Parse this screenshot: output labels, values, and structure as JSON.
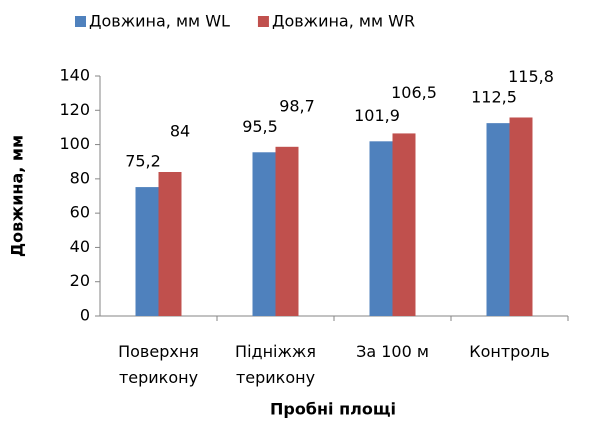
{
  "chart_data": {
    "type": "bar",
    "categories": [
      [
        "Поверхня",
        "терикону"
      ],
      [
        "Підніжжя",
        "терикону"
      ],
      [
        "За 100 м"
      ],
      [
        "Контроль"
      ]
    ],
    "series": [
      {
        "name": "Довжина, мм WL",
        "color": "#4f81bd",
        "values": [
          75.2,
          95.5,
          101.9,
          112.5
        ],
        "value_labels": [
          "75,2",
          "95,5",
          "101,9",
          "112,5"
        ]
      },
      {
        "name": "Довжина, мм WR",
        "color": "#c0504d",
        "values": [
          84,
          98.7,
          106.5,
          115.8
        ],
        "value_labels": [
          "84",
          "98,7",
          "106,5",
          "115,8"
        ]
      }
    ],
    "ylabel": "Довжина, мм",
    "xlabel": "Пробні площі",
    "ylim": [
      0,
      140
    ],
    "yticks": [
      0,
      20,
      40,
      60,
      80,
      100,
      120,
      140
    ],
    "legend": "top"
  }
}
